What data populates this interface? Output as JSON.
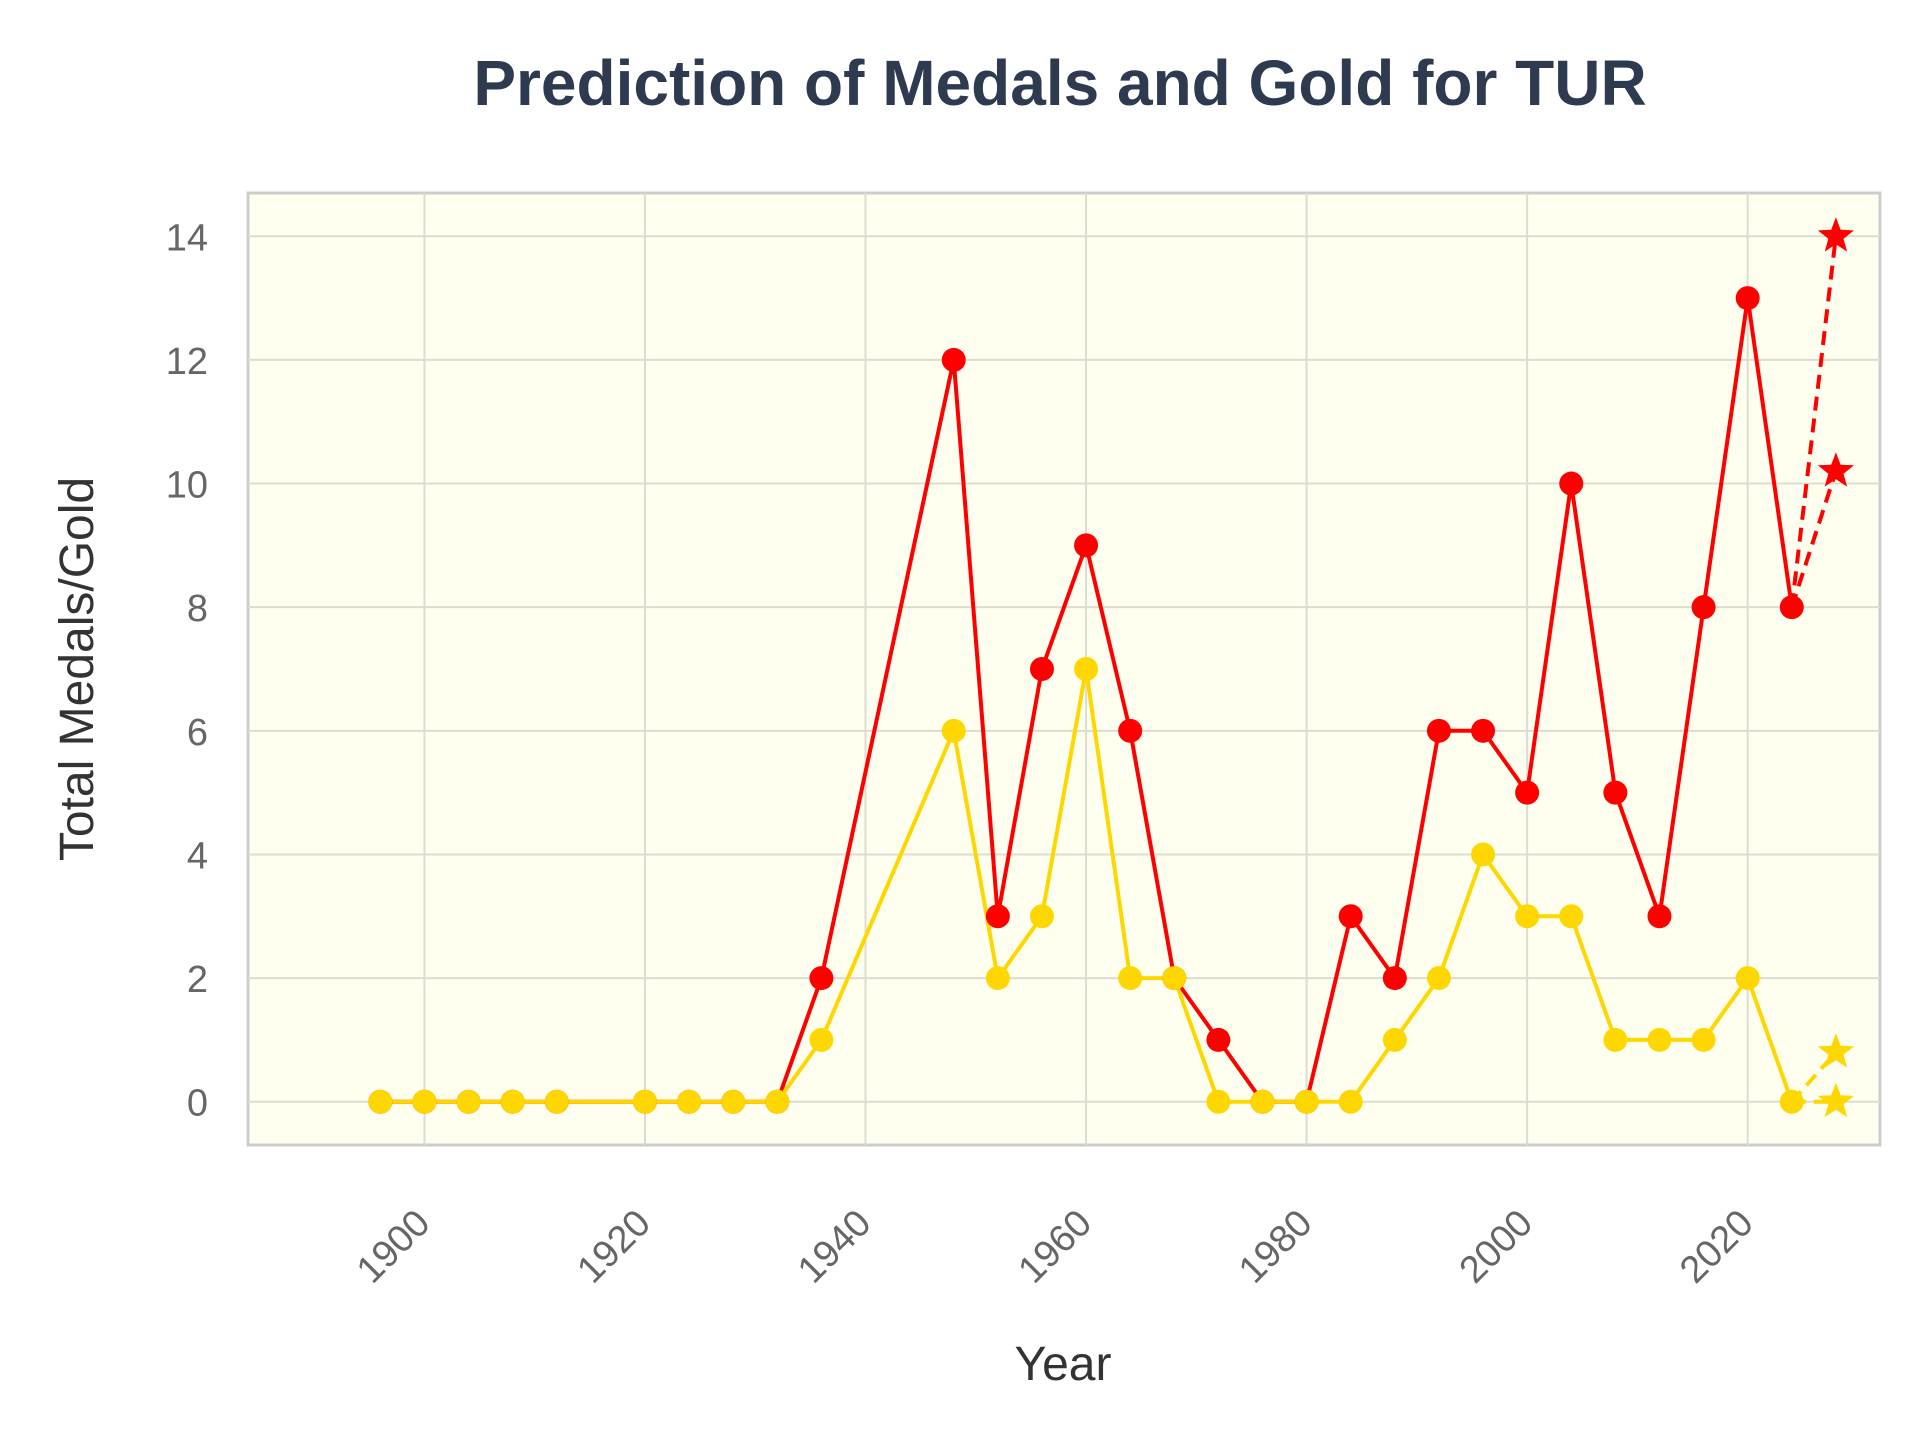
{
  "chart_data": {
    "type": "line",
    "title": "Prediction of Medals and Gold for TUR",
    "xlabel": "Year",
    "ylabel": "Total Medals/Gold",
    "xlim": [
      1884,
      2032
    ],
    "ylim": [
      -0.7,
      14.7
    ],
    "xticks": [
      1900,
      1920,
      1940,
      1960,
      1980,
      2000,
      2020
    ],
    "yticks": [
      0,
      2,
      4,
      6,
      8,
      10,
      12,
      14
    ],
    "grid": true,
    "background_color": "#fffff0",
    "series": [
      {
        "color": "#ff0000",
        "marker": "circle",
        "line": "solid",
        "x": [
          1896,
          1900,
          1904,
          1908,
          1912,
          1920,
          1924,
          1928,
          1932,
          1936,
          1948,
          1952,
          1956,
          1960,
          1964,
          1968,
          1972,
          1976,
          1980,
          1984,
          1988,
          1992,
          1996,
          2000,
          2004,
          2008,
          2012,
          2016,
          2020,
          2024
        ],
        "y": [
          0,
          0,
          0,
          0,
          0,
          0,
          0,
          0,
          0,
          2,
          12,
          3,
          7,
          9,
          6,
          2,
          1,
          0,
          0,
          3,
          2,
          6,
          6,
          5,
          10,
          5,
          3,
          8,
          13,
          8
        ]
      },
      {
        "color": "#ffd700",
        "marker": "circle",
        "line": "solid",
        "x": [
          1896,
          1900,
          1904,
          1908,
          1912,
          1920,
          1924,
          1928,
          1932,
          1936,
          1948,
          1952,
          1956,
          1960,
          1964,
          1968,
          1972,
          1976,
          1980,
          1984,
          1988,
          1992,
          1996,
          2000,
          2004,
          2008,
          2012,
          2016,
          2020,
          2024
        ],
        "y": [
          0,
          0,
          0,
          0,
          0,
          0,
          0,
          0,
          0,
          1,
          6,
          2,
          3,
          7,
          2,
          2,
          0,
          0,
          0,
          0,
          1,
          2,
          4,
          3,
          3,
          1,
          1,
          1,
          2,
          0
        ]
      }
    ],
    "predictions": [
      {
        "color": "#ff0000",
        "marker": "star",
        "line": "dashed",
        "from": [
          2024,
          8
        ],
        "x": 2028,
        "y": 14
      },
      {
        "color": "#ff0000",
        "marker": "star",
        "line": "dashed",
        "from": [
          2024,
          8
        ],
        "x": 2028,
        "y": 10.2
      },
      {
        "color": "#ffd700",
        "marker": "star",
        "line": "dashed",
        "from": [
          2024,
          0
        ],
        "x": 2028,
        "y": 0.8
      },
      {
        "color": "#ffd700",
        "marker": "star",
        "line": "dashed",
        "from": [
          2024,
          0
        ],
        "x": 2028,
        "y": 0
      }
    ]
  }
}
